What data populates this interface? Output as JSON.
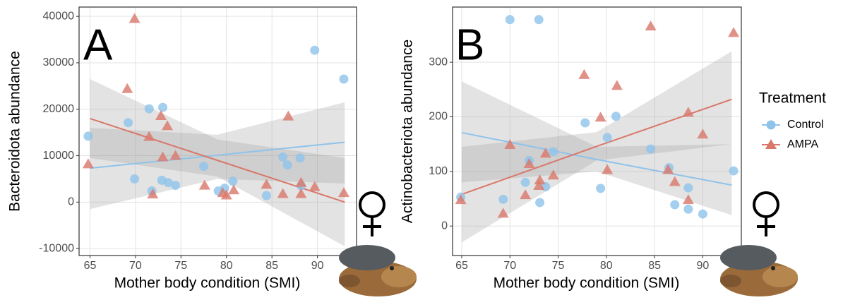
{
  "chart_data": [
    {
      "type": "scatter",
      "panel": "A",
      "x_label": "Mother body condition (SMI)",
      "y_label": "Bacteroidota abundance",
      "xlim": [
        63.8,
        94.3
      ],
      "ylim": [
        -11500,
        42000
      ],
      "xticks": [
        65,
        70,
        75,
        80,
        85,
        90
      ],
      "yticks": [
        -10000,
        0,
        10000,
        20000,
        30000,
        40000
      ],
      "grid": true,
      "series": [
        {
          "marker": "circle",
          "color": "#8fc3ea",
          "x": [
            64.8,
            69.2,
            69.9,
            71.5,
            71.8,
            73.0,
            72.9,
            73.6,
            74.4,
            77.5,
            79.1,
            79.8,
            80.7,
            84.4,
            86.2,
            86.7,
            88.1,
            88.2,
            89.7,
            92.9
          ],
          "values": [
            14200,
            17100,
            5000,
            20100,
            2400,
            20400,
            4700,
            4200,
            3600,
            7700,
            2400,
            3000,
            4500,
            1400,
            9700,
            8000,
            9500,
            3500,
            32700,
            26500
          ],
          "fit": {
            "x": [
              65,
              79,
              93
            ],
            "values": [
              7300,
              10100,
              12900
            ],
            "lower": [
              -1500,
              5000,
              4000
            ],
            "upper": [
              16000,
              14500,
              21500
            ]
          }
        },
        {
          "marker": "triangle",
          "color": "#d9776a",
          "x": [
            64.8,
            69.1,
            69.9,
            71.5,
            71.9,
            72.8,
            73.0,
            73.5,
            74.4,
            77.6,
            79.6,
            80.0,
            80.8,
            84.4,
            86.2,
            86.8,
            88.2,
            88.2,
            89.7,
            92.9
          ],
          "values": [
            8200,
            24400,
            39500,
            14100,
            1700,
            18600,
            9700,
            16400,
            10000,
            3600,
            2000,
            1500,
            2600,
            3800,
            1800,
            18500,
            4200,
            1800,
            3300,
            2000
          ],
          "fit": {
            "x": [
              65,
              79,
              93
            ],
            "values": [
              18000,
              9000,
              0
            ],
            "lower": [
              9500,
              5500,
              -9500
            ],
            "upper": [
              26500,
              13500,
              9500
            ]
          }
        }
      ]
    },
    {
      "type": "scatter",
      "panel": "B",
      "x_label": "Mother body condition (SMI)",
      "y_label": "Actinobacteriota abundance",
      "xlim": [
        64.05,
        94.0
      ],
      "ylim": [
        -54,
        401
      ],
      "xticks": [
        65,
        70,
        75,
        80,
        85,
        90
      ],
      "yticks": [
        0,
        100,
        200,
        300
      ],
      "grid": true,
      "legend_title": "Treatment",
      "legend": "right",
      "series": [
        {
          "name": "Control",
          "marker": "circle",
          "color": "#8fc3ea",
          "x": [
            64.9,
            69.3,
            70.0,
            71.6,
            72.0,
            73.0,
            73.1,
            73.7,
            74.5,
            77.8,
            79.4,
            80.1,
            81.0,
            84.6,
            86.5,
            87.1,
            88.5,
            88.5,
            90.0,
            93.2
          ],
          "values": [
            53,
            49,
            378,
            80,
            120,
            378,
            43,
            72,
            136,
            189,
            69,
            162,
            201,
            141,
            107,
            39,
            70,
            31,
            22,
            101
          ],
          "fit": {
            "x": [
              65,
              79,
              93
            ],
            "values": [
              171,
              122,
              75
            ],
            "lower": [
              80,
              100,
              20
            ],
            "upper": [
              265,
              145,
              150
            ]
          }
        },
        {
          "name": "AMPA",
          "marker": "triangle",
          "color": "#d9776a",
          "x": [
            64.9,
            69.3,
            70.0,
            71.6,
            72.0,
            73.0,
            73.1,
            73.7,
            74.5,
            77.7,
            79.4,
            80.1,
            81.1,
            84.6,
            86.4,
            87.1,
            88.5,
            88.5,
            90.0,
            93.2
          ],
          "values": [
            48,
            23,
            149,
            57,
            114,
            74,
            84,
            133,
            93,
            277,
            199,
            103,
            257,
            366,
            103,
            81,
            208,
            48,
            168,
            354
          ],
          "fit": {
            "x": [
              65,
              79,
              93
            ],
            "values": [
              58,
              146,
              232
            ],
            "lower": [
              -30,
              120,
              150
            ],
            "upper": [
              145,
              172,
              320
            ]
          }
        }
      ]
    }
  ]
}
